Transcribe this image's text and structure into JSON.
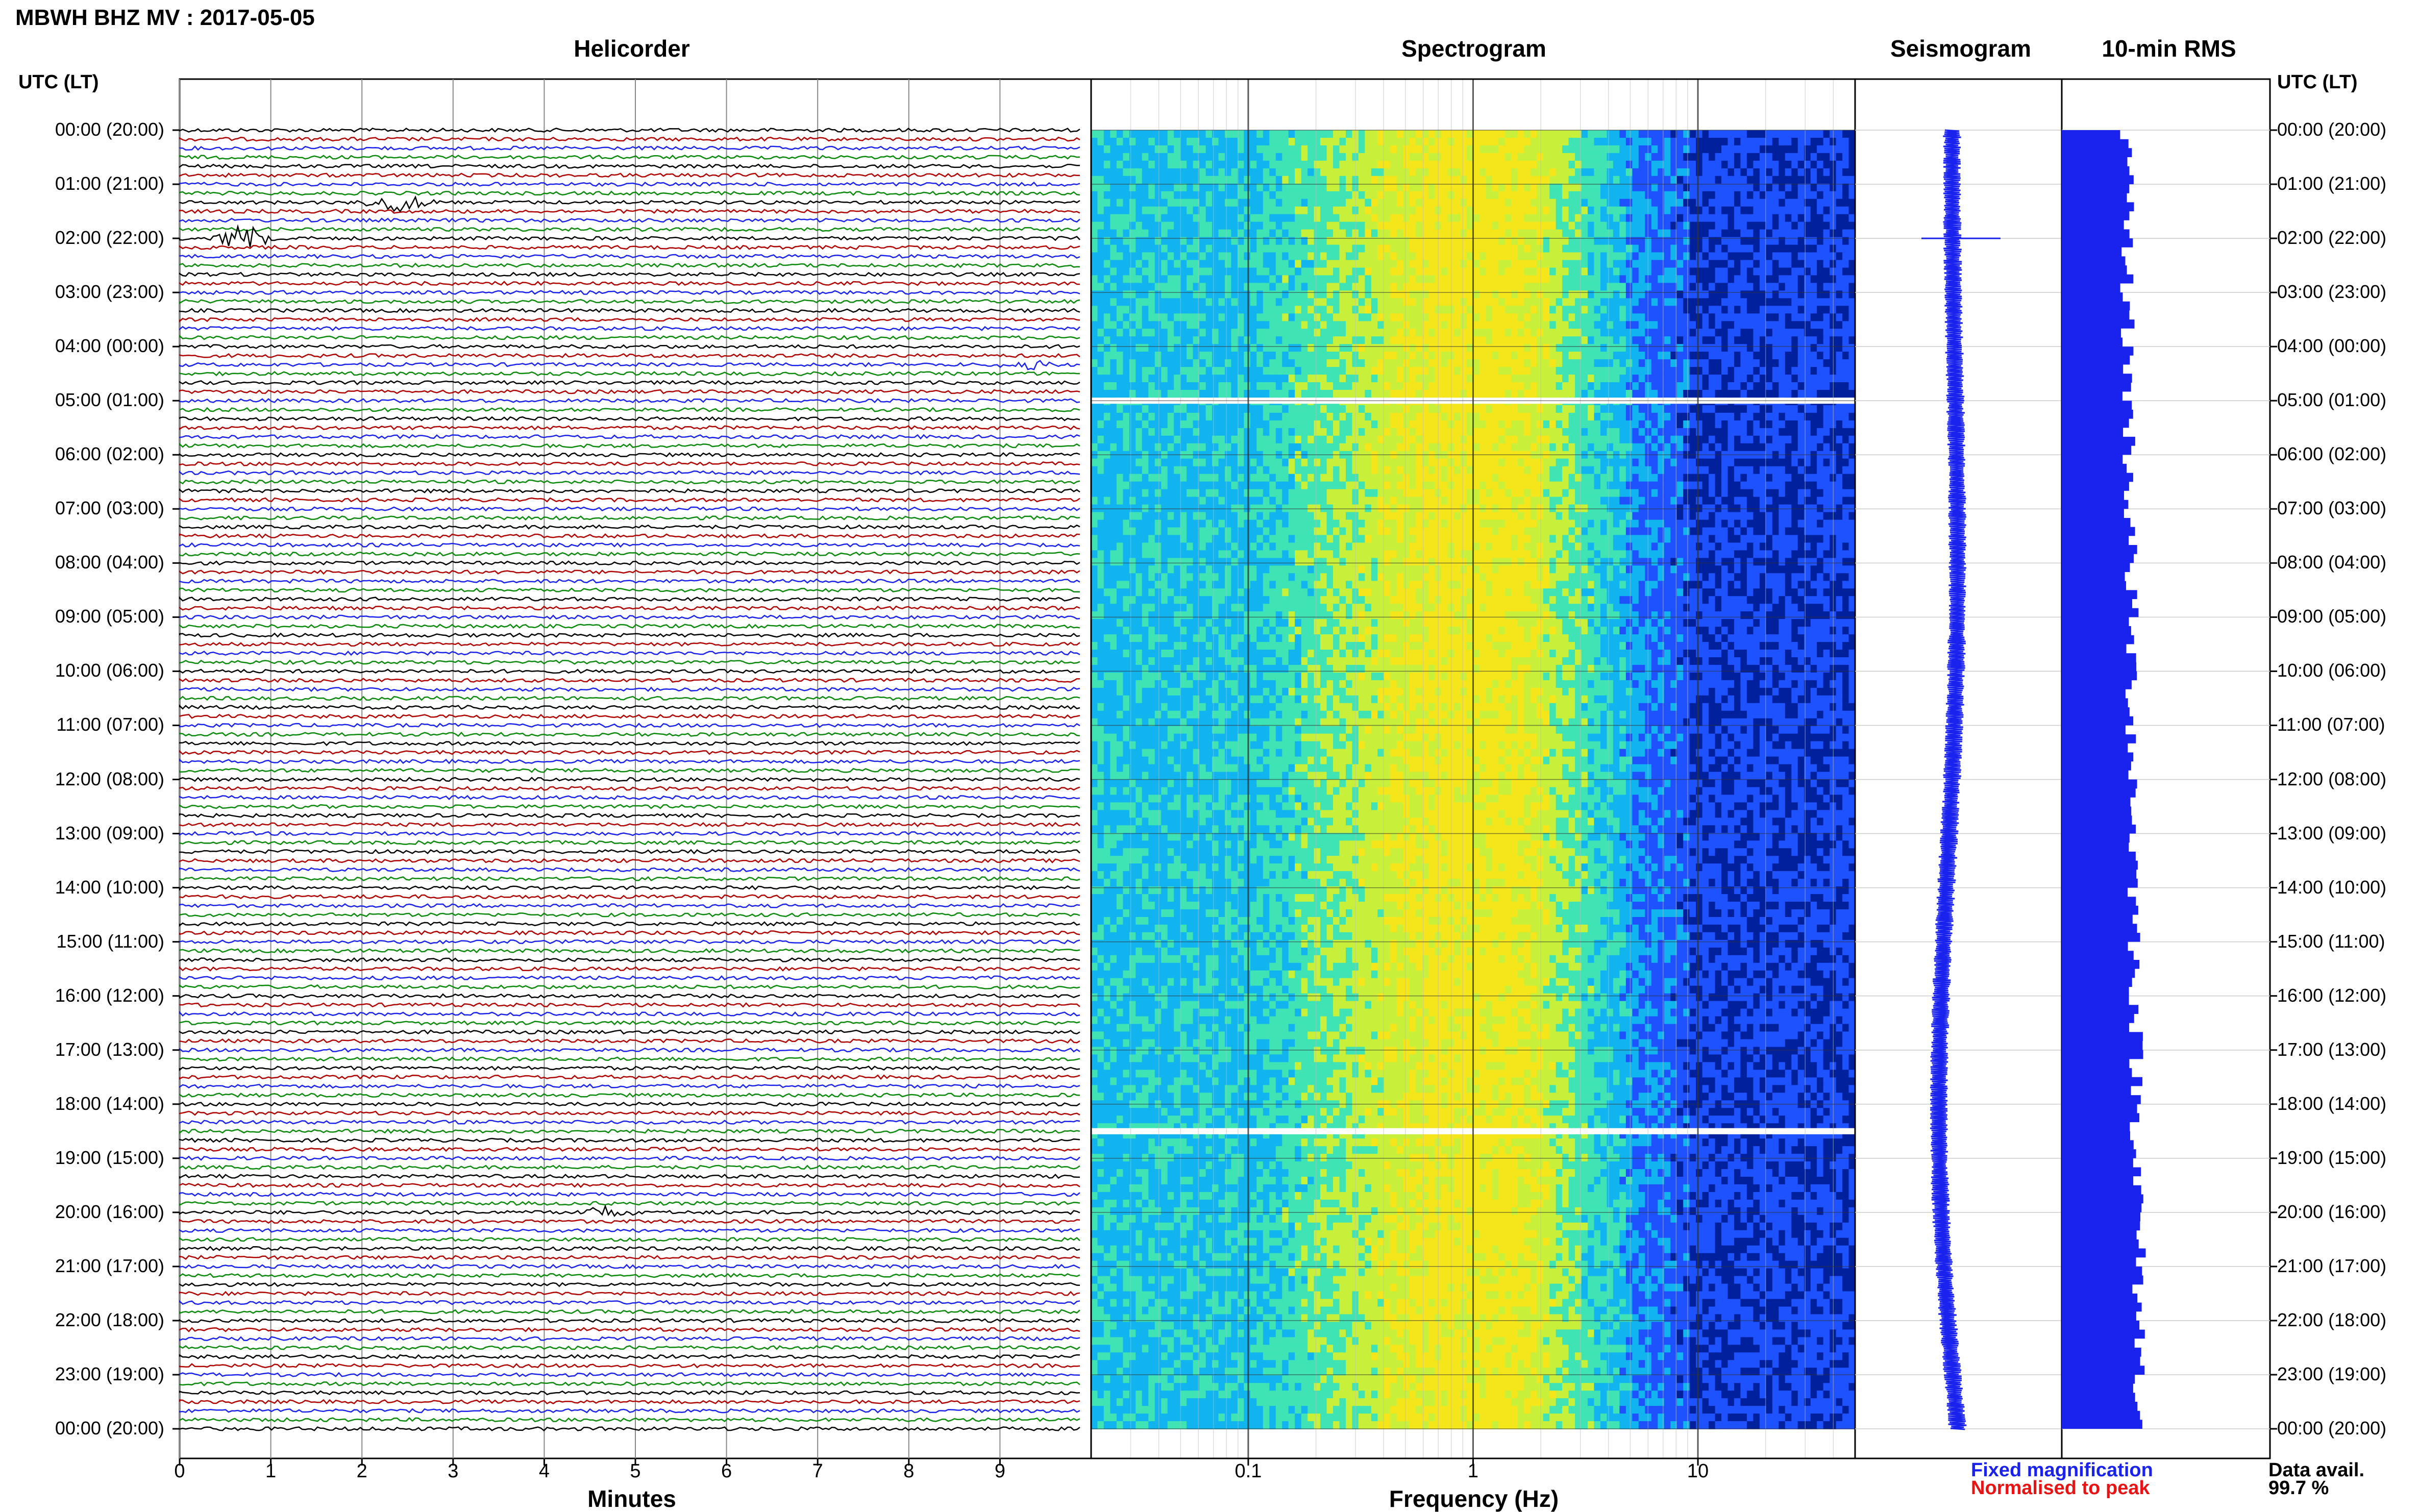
{
  "header": {
    "station_title": "MBWH BHZ MV : 2017-05-05",
    "utc_heading_left": "UTC (LT)",
    "utc_heading_right": "UTC (LT)"
  },
  "panels": {
    "helicorder": "Helicorder",
    "spectrogram": "Spectrogram",
    "seismogram": "Seismogram",
    "rms": "10-min RMS"
  },
  "time_labels": [
    "00:00 (20:00)",
    "01:00 (21:00)",
    "02:00 (22:00)",
    "03:00 (23:00)",
    "04:00 (00:00)",
    "05:00 (01:00)",
    "06:00 (02:00)",
    "07:00 (03:00)",
    "08:00 (04:00)",
    "09:00 (05:00)",
    "10:00 (06:00)",
    "11:00 (07:00)",
    "12:00 (08:00)",
    "13:00 (09:00)",
    "14:00 (10:00)",
    "15:00 (11:00)",
    "16:00 (12:00)",
    "17:00 (13:00)",
    "18:00 (14:00)",
    "19:00 (15:00)",
    "20:00 (16:00)",
    "21:00 (17:00)",
    "22:00 (18:00)",
    "23:00 (19:00)",
    "00:00 (20:00)"
  ],
  "axes": {
    "minutes_title": "Minutes",
    "minutes_ticks": [
      "0",
      "1",
      "2",
      "3",
      "4",
      "5",
      "6",
      "7",
      "8",
      "9"
    ],
    "frequency_title": "Frequency (Hz)",
    "frequency_ticks": [
      "0.1",
      "1",
      "10"
    ]
  },
  "legend": {
    "fixed": "Fixed magnification",
    "normalised": "Normalised to peak",
    "fixed_color": "#1a22ee",
    "normalised_color": "#e81414"
  },
  "availability": {
    "label": "Data avail.",
    "value": "99.7 %"
  },
  "trace_colors": [
    "#000000",
    "#b00000",
    "#1a22ee",
    "#0a8a0a"
  ],
  "chart_data": [
    {
      "type": "line",
      "name": "helicorder",
      "title": "Helicorder",
      "xlabel": "Minutes",
      "xlim": [
        0,
        10
      ],
      "y_labels": "time_labels",
      "rows_per_hour": 6,
      "events": [
        {
          "time": "01:20",
          "minute": 2.4,
          "strength": 0.6
        },
        {
          "time": "02:00",
          "minute": 0.7,
          "strength": 1.0
        },
        {
          "time": "04:20",
          "minute": 9.3,
          "strength": 0.4
        },
        {
          "time": "20:00",
          "minute": 4.6,
          "strength": 0.4
        }
      ]
    },
    {
      "type": "heatmap",
      "name": "spectrogram",
      "title": "Spectrogram",
      "xlabel": "Frequency (Hz)",
      "xscale": "log",
      "xlim": [
        0.02,
        50
      ],
      "colormap": [
        "#00209c",
        "#1e52ff",
        "#11b4ee",
        "#3fe3b4",
        "#c8f03a",
        "#f5e51b"
      ],
      "gaps": [
        "05:00",
        "18:30"
      ]
    },
    {
      "type": "line",
      "name": "seismogram",
      "title": "Seismogram"
    },
    {
      "type": "bar",
      "name": "rms",
      "title": "10-min RMS",
      "orientation": "horizontal",
      "color": "#1a22ee"
    }
  ]
}
